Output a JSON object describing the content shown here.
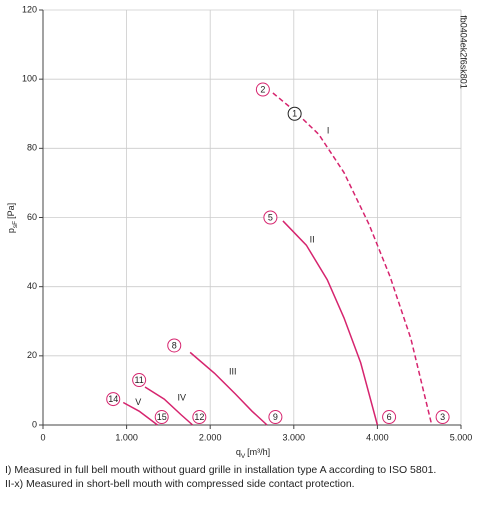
{
  "chart_data": {
    "type": "line",
    "xlabel": {
      "main": "q",
      "sub": "V",
      "unit": "[m³/h]"
    },
    "ylabel": {
      "main": "p",
      "sub": "sF",
      "unit": "[Pa]"
    },
    "code": "fb0404ek2f6sk801",
    "notes": [
      "I) Measured in full bell mouth without guard grille in installation type A according to ISO 5801.",
      "II-x) Measured in short-bell mouth with compressed side contact protection."
    ],
    "xlim": [
      0,
      5000
    ],
    "xticks": [
      0,
      {
        "value": 1000,
        "label": "1.000"
      },
      {
        "value": 2000,
        "label": "2.000"
      },
      {
        "value": 3000,
        "label": "3.000"
      },
      {
        "value": 4000,
        "label": "4.000"
      },
      {
        "value": 5000,
        "label": "5.000"
      }
    ],
    "ylim": [
      0,
      120
    ],
    "yticks": [
      0,
      20,
      40,
      60,
      80,
      100,
      120
    ],
    "grid": true,
    "series": [
      {
        "name": "I",
        "color": "#d6246e",
        "dashed": true,
        "label_at": [
          3410,
          85
        ],
        "x": [
          2750,
          3000,
          3300,
          3600,
          3900,
          4150,
          4400,
          4650
        ],
        "values": [
          96,
          91,
          84,
          73,
          58,
          43,
          25,
          0
        ]
      },
      {
        "name": "II",
        "color": "#d6246e",
        "dashed": false,
        "label_at": [
          3220,
          53.5
        ],
        "x": [
          2870,
          3150,
          3400,
          3600,
          3800,
          4000
        ],
        "values": [
          59,
          52,
          42,
          31,
          18,
          0
        ]
      },
      {
        "name": "III",
        "color": "#d6246e",
        "dashed": false,
        "label_at": [
          2270,
          15.3
        ],
        "x": [
          1760,
          2050,
          2300,
          2500,
          2680
        ],
        "values": [
          21,
          15,
          9,
          4,
          0
        ]
      },
      {
        "name": "IV",
        "color": "#d6246e",
        "dashed": false,
        "label_at": [
          1660,
          7.8
        ],
        "x": [
          1220,
          1450,
          1650,
          1790
        ],
        "values": [
          11,
          7.5,
          3,
          0
        ]
      },
      {
        "name": "V",
        "color": "#d6246e",
        "dashed": false,
        "label_at": [
          1140,
          6.4
        ],
        "x": [
          960,
          1150,
          1370
        ],
        "values": [
          6.5,
          4,
          0
        ]
      }
    ],
    "points": [
      {
        "label": "2",
        "x": 2630,
        "y": 97
      },
      {
        "label": "1",
        "x": 3010,
        "y": 90,
        "black": true
      },
      {
        "label": "3",
        "x": 4780,
        "y": 2.3
      },
      {
        "label": "5",
        "x": 2720,
        "y": 60
      },
      {
        "label": "6",
        "x": 4140,
        "y": 2.3
      },
      {
        "label": "8",
        "x": 1570,
        "y": 23
      },
      {
        "label": "9",
        "x": 2780,
        "y": 2.3
      },
      {
        "label": "11",
        "x": 1150,
        "y": 13
      },
      {
        "label": "12",
        "x": 1870,
        "y": 2.3
      },
      {
        "label": "14",
        "x": 840,
        "y": 7.5
      },
      {
        "label": "15",
        "x": 1420,
        "y": 2.3
      }
    ]
  }
}
